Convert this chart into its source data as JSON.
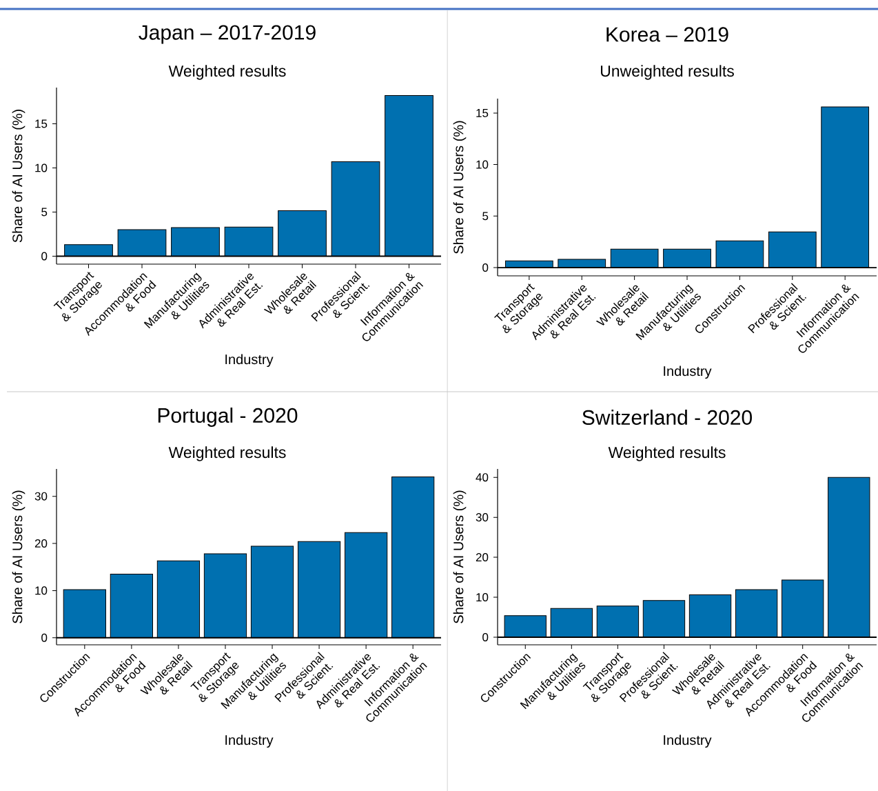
{
  "chart_data": [
    {
      "type": "bar",
      "title": "Japan – 2017-2019",
      "subtitle": "Weighted results",
      "xlabel": "Industry",
      "ylabel": "Share of AI Users (%)",
      "color": "#0070b0",
      "categories": [
        "Transport & Storage",
        "Accommodation & Food",
        "Manufacturing & Utilities",
        "Administrative & Real Est.",
        "Wholesale & Retail",
        "Professional & Scient.",
        "Information & Communication"
      ],
      "values": [
        1.3,
        3.0,
        3.25,
        3.3,
        5.15,
        10.7,
        18.2
      ],
      "ylim": [
        -0.9,
        19.1
      ],
      "yticks": [
        0,
        5,
        10,
        15
      ],
      "ref_lines": [
        {
          "axis": "y",
          "value": 0
        }
      ]
    },
    {
      "type": "bar",
      "title": "Korea – 2019",
      "subtitle": "Unweighted results",
      "xlabel": "Industry",
      "ylabel": "Share of AI Users (%)",
      "color": "#0070b0",
      "categories": [
        "Transport & Storage",
        "Administrative & Real Est.",
        "Wholesale & Retail",
        "Manufacturing & Utilities",
        "Construction",
        "Professional & Scient.",
        "Information & Communication"
      ],
      "values": [
        0.65,
        0.8,
        1.8,
        1.8,
        2.6,
        3.47,
        15.6
      ],
      "ylim": [
        -0.8,
        16.4
      ],
      "yticks": [
        0,
        5,
        10,
        15
      ],
      "ref_lines": [
        {
          "axis": "y",
          "value": 0
        }
      ]
    },
    {
      "type": "bar",
      "title": "Portugal - 2020",
      "subtitle": "Weighted results",
      "xlabel": "Industry",
      "ylabel": "Share of AI Users (%)",
      "color": "#0070b0",
      "categories": [
        "Construction",
        "Accommodation & Food",
        "Wholesale & Retail",
        "Transport & Storage",
        "Manufacturing & Utilities",
        "Professional & Scient.",
        "Administrative & Real Est.",
        "Information & Communication"
      ],
      "values": [
        10.2,
        13.5,
        16.3,
        17.8,
        19.4,
        20.4,
        22.3,
        34.1
      ],
      "ylim": [
        -1.5,
        35.8
      ],
      "yticks": [
        0,
        10,
        20,
        30
      ],
      "ref_lines": [
        {
          "axis": "y",
          "value": 0
        }
      ]
    },
    {
      "type": "bar",
      "title": "Switzerland - 2020",
      "subtitle": "Weighted results",
      "xlabel": "Industry",
      "ylabel": "Share of AI Users (%)",
      "color": "#0070b0",
      "categories": [
        "Construction",
        "Manufacturing & Utilities",
        "Transport & Storage",
        "Professional & Scient.",
        "Wholesale & Retail",
        "Administrative & Real Est.",
        "Accommodation & Food",
        "Information & Communication"
      ],
      "values": [
        5.4,
        7.2,
        7.8,
        9.2,
        10.6,
        11.9,
        14.3,
        40.0
      ],
      "ylim": [
        -1.9,
        42.1
      ],
      "yticks": [
        0,
        10,
        20,
        30,
        40
      ],
      "ref_lines": [
        {
          "axis": "y",
          "value": 0
        }
      ]
    }
  ]
}
